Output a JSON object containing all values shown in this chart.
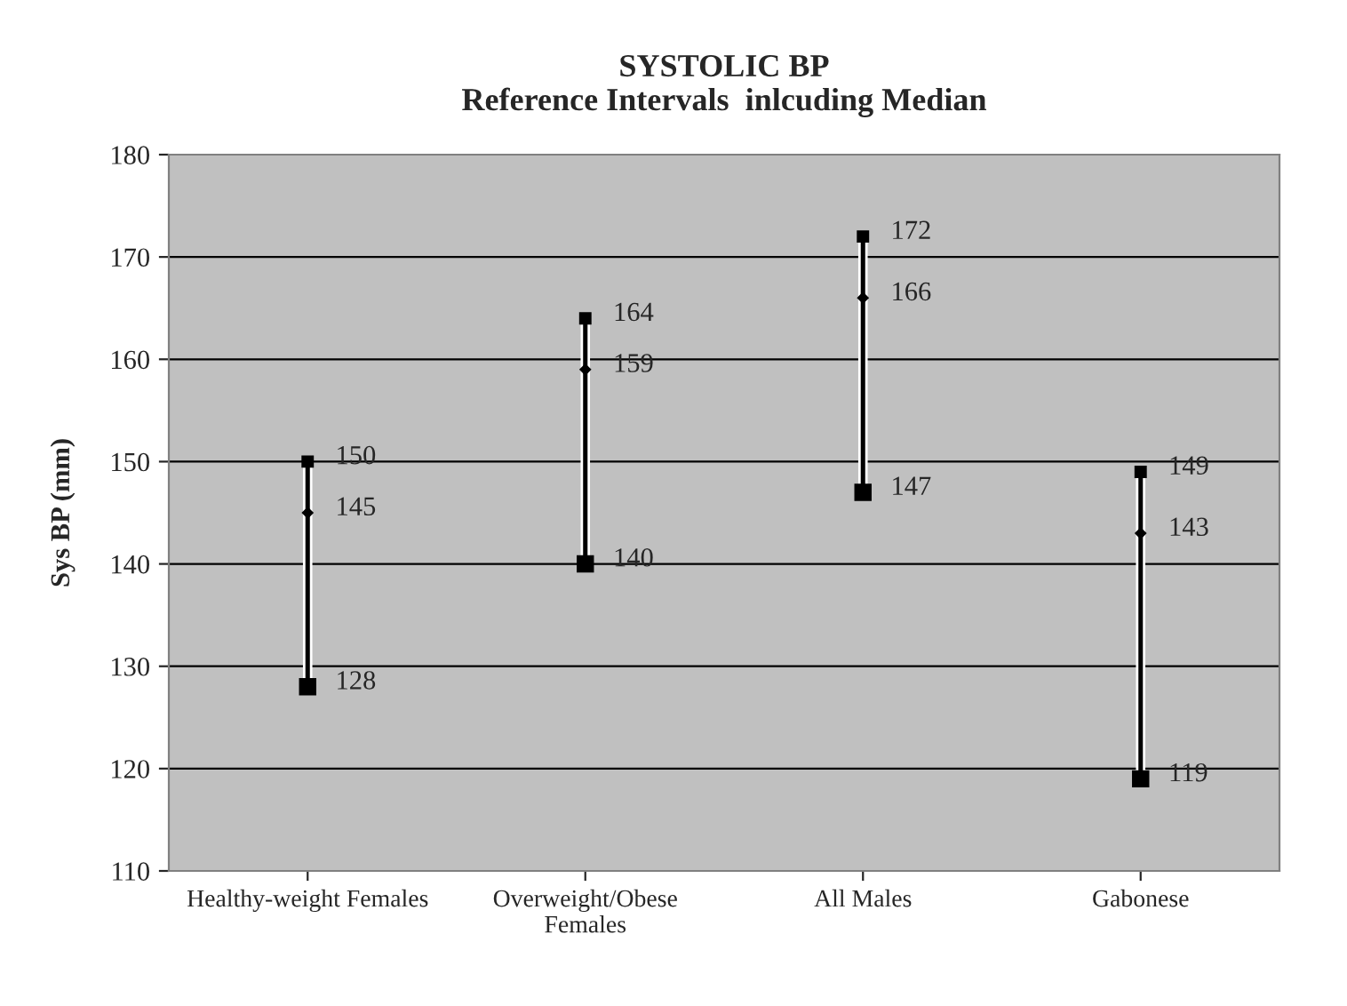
{
  "chart_data": {
    "type": "bar",
    "title": "SYSTOLIC BP\nReference Intervals  inlcuding Median",
    "ylabel": "Sys BP (mm)",
    "categories": [
      "Healthy-weight Females",
      "Overweight/Obese\nFemales",
      "All Males",
      "Gabonese"
    ],
    "ylim": [
      110,
      180
    ],
    "yticks": [
      110,
      120,
      130,
      140,
      150,
      160,
      170,
      180
    ],
    "grid": "y",
    "series": [
      {
        "color": "#000000",
        "base": [
          128,
          140,
          147,
          119
        ],
        "values": [
          22,
          24,
          25,
          30
        ]
      },
      {
        "type": "scatter",
        "marker": "square",
        "color": "#000000",
        "values": [
          150,
          164,
          172,
          149
        ],
        "value_labels": [
          "150",
          "164",
          "172",
          "149"
        ]
      },
      {
        "type": "scatter",
        "marker": "diamond",
        "color": "#000000",
        "values": [
          145,
          159,
          166,
          143
        ],
        "value_labels": [
          "145",
          "159",
          "166",
          "143"
        ]
      },
      {
        "type": "scatter",
        "marker": "square",
        "color": "#000000",
        "values": [
          128,
          140,
          147,
          119
        ],
        "value_labels": [
          "128",
          "140",
          "147",
          "119"
        ]
      }
    ]
  }
}
